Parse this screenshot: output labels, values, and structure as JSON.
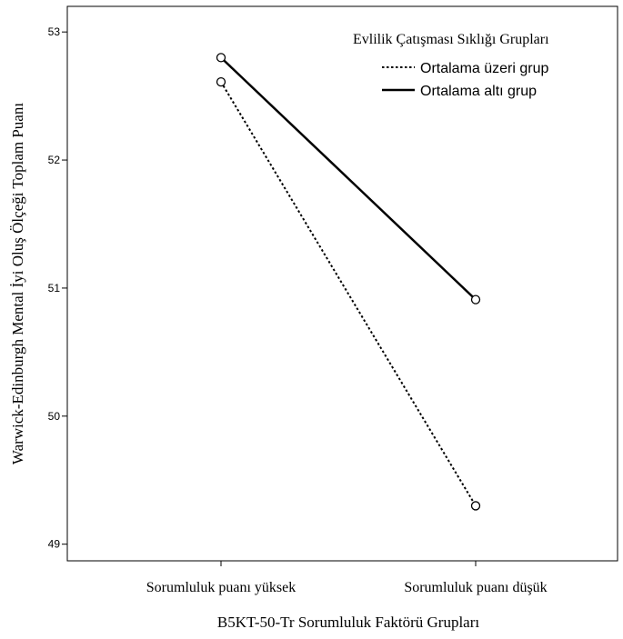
{
  "chart_data": {
    "type": "line",
    "title": "",
    "xlabel": "B5KT-50-Tr Sorumluluk Faktörü Grupları",
    "ylabel": "Warwick-Edinburgh Mental İyi Oluş Ölçeği Toplam Puanı",
    "categories": [
      "Sorumluluk puanı yüksek",
      "Sorumluluk puanı düşük"
    ],
    "yticks": [
      "49",
      "50",
      "51",
      "52",
      "53"
    ],
    "ylim": [
      48.87,
      53.2
    ],
    "grid": false,
    "legend": {
      "title": "Evlilik Çatışması Sıklığı Grupları",
      "position": "top-right"
    },
    "series": [
      {
        "name": "Ortalama üzeri grup",
        "values": [
          52.61,
          49.3
        ],
        "style": "dashed",
        "color": "#000000"
      },
      {
        "name": "Ortalama altı grup",
        "values": [
          52.8,
          50.91
        ],
        "style": "solid",
        "color": "#000000"
      }
    ]
  }
}
